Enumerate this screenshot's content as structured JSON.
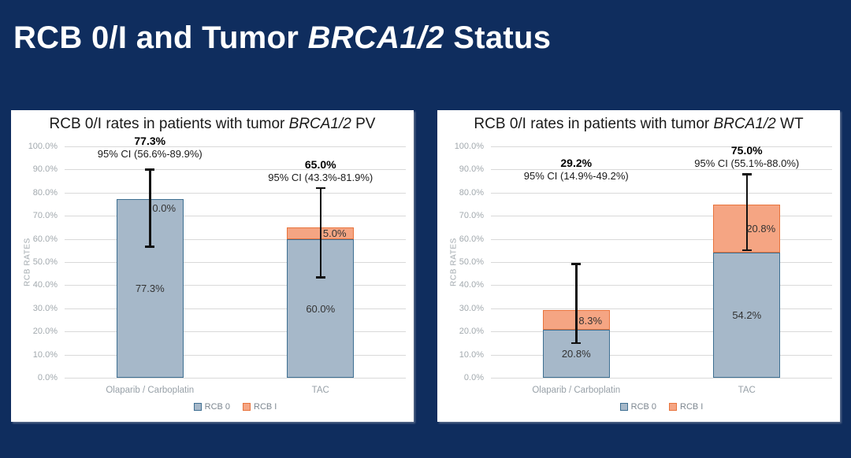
{
  "slide": {
    "title_prefix": "RCB 0/I and Tumor ",
    "title_italic": "BRCA1/2",
    "title_suffix": " Status"
  },
  "colors": {
    "background": "#0f2d5e",
    "panel": "#ffffff",
    "rcb0_fill": "#a6b8c9",
    "rcb0_border": "#3e6f92",
    "rcb1_fill": "#f5a583",
    "rcb1_border": "#e8743d",
    "grid": "#d9d9d9",
    "axis_text": "#a2a9ae",
    "error_bar": "#111111"
  },
  "chart_data": [
    {
      "type": "bar",
      "stacked": true,
      "title_prefix": "RCB 0/I rates in patients with tumor ",
      "title_italic": "BRCA1/2",
      "title_suffix": " PV",
      "ylabel": "RCB RATES",
      "ylim": [
        0,
        100
      ],
      "ytick_step": 10,
      "grid": true,
      "legend_position": "bottom",
      "categories": [
        "Olaparib / Carboplatin",
        "TAC"
      ],
      "series": [
        {
          "name": "RCB 0",
          "values": [
            77.3,
            60.0
          ],
          "labels": [
            "77.3%",
            "60.0%"
          ]
        },
        {
          "name": "RCB I",
          "values": [
            0.0,
            5.0
          ],
          "labels": [
            "0.0%",
            "5.0%"
          ]
        }
      ],
      "error_bars": [
        {
          "low": 56.6,
          "high": 89.9
        },
        {
          "low": 43.3,
          "high": 81.9
        }
      ],
      "annotations": [
        {
          "value": "77.3%",
          "ci": "95% CI (56.6%-89.9%)",
          "y_pct": 102
        },
        {
          "value": "65.0%",
          "ci": "95% CI (43.3%-81.9%)",
          "y_pct": 92
        }
      ]
    },
    {
      "type": "bar",
      "stacked": true,
      "title_prefix": "RCB 0/I rates in patients with tumor ",
      "title_italic": "BRCA1/2",
      "title_suffix": " WT",
      "ylabel": "RCB RATES",
      "ylim": [
        0,
        100
      ],
      "ytick_step": 10,
      "grid": true,
      "legend_position": "bottom",
      "categories": [
        "Olaparib / Carboplatin",
        "TAC"
      ],
      "series": [
        {
          "name": "RCB 0",
          "values": [
            20.8,
            54.2
          ],
          "labels": [
            "20.8%",
            "54.2%"
          ]
        },
        {
          "name": "RCB I",
          "values": [
            8.3,
            20.8
          ],
          "labels": [
            "8.3%",
            "20.8%"
          ]
        }
      ],
      "error_bars": [
        {
          "low": 14.9,
          "high": 49.2
        },
        {
          "low": 55.1,
          "high": 88.0
        }
      ],
      "annotations": [
        {
          "value": "29.2%",
          "ci": "95% CI (14.9%-49.2%)",
          "y_pct": 92.5
        },
        {
          "value": "75.0%",
          "ci": "95% CI (55.1%-88.0%)",
          "y_pct": 98
        }
      ]
    }
  ]
}
